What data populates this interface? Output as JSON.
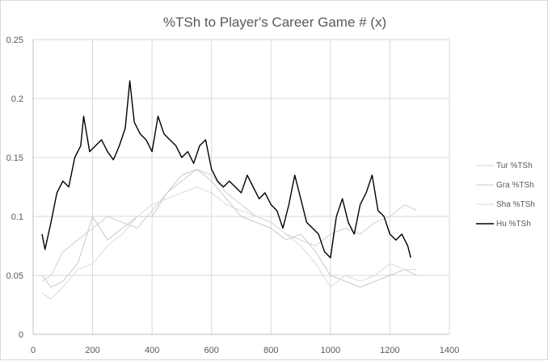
{
  "chart_data": {
    "type": "line",
    "title": "%TSh to Player's Career Game # (x)",
    "xlabel": "",
    "ylabel": "",
    "xlim": [
      0,
      1400
    ],
    "ylim": [
      0,
      0.25
    ],
    "x_ticks": [
      0,
      200,
      400,
      600,
      800,
      1000,
      1200,
      1400
    ],
    "y_ticks": [
      0,
      0.05,
      0.1,
      0.15,
      0.2,
      0.25
    ],
    "x_tick_labels": [
      "0",
      "200",
      "400",
      "600",
      "800",
      "1000",
      "1200",
      "1400"
    ],
    "y_tick_labels": [
      "0",
      "0.05",
      "0.1",
      "0.15",
      "0.2",
      "0.25"
    ],
    "grid": true,
    "legend_position": "right",
    "series": [
      {
        "name": "Tur %TSh",
        "color": "#d0d0d0",
        "x": [
          30,
          60,
          100,
          150,
          200,
          250,
          300,
          350,
          400,
          450,
          500,
          550,
          600,
          650,
          700,
          750,
          800,
          850,
          900,
          950,
          1000,
          1050,
          1100,
          1150,
          1200,
          1250,
          1290
        ],
        "y": [
          0.045,
          0.05,
          0.07,
          0.08,
          0.09,
          0.1,
          0.095,
          0.09,
          0.105,
          0.12,
          0.13,
          0.14,
          0.135,
          0.12,
          0.11,
          0.1,
          0.095,
          0.085,
          0.08,
          0.075,
          0.085,
          0.09,
          0.085,
          0.095,
          0.1,
          0.11,
          0.105
        ]
      },
      {
        "name": "Gra %TSh",
        "color": "#c8c8c8",
        "x": [
          30,
          60,
          100,
          150,
          200,
          250,
          300,
          350,
          400,
          450,
          500,
          550,
          600,
          650,
          700,
          750,
          800,
          850,
          900,
          950,
          1000,
          1050,
          1100,
          1150,
          1200,
          1250,
          1290
        ],
        "y": [
          0.05,
          0.04,
          0.045,
          0.06,
          0.1,
          0.08,
          0.09,
          0.1,
          0.1,
          0.12,
          0.135,
          0.14,
          0.13,
          0.115,
          0.1,
          0.095,
          0.09,
          0.08,
          0.085,
          0.07,
          0.05,
          0.045,
          0.04,
          0.045,
          0.05,
          0.055,
          0.05
        ]
      },
      {
        "name": "Sha %TSh",
        "color": "#dadada",
        "x": [
          30,
          60,
          100,
          150,
          200,
          250,
          300,
          350,
          400,
          450,
          500,
          550,
          600,
          650,
          700,
          750,
          800,
          850,
          900,
          950,
          1000,
          1050,
          1100,
          1150,
          1200,
          1250,
          1290
        ],
        "y": [
          0.035,
          0.03,
          0.04,
          0.055,
          0.06,
          0.075,
          0.085,
          0.1,
          0.11,
          0.115,
          0.12,
          0.125,
          0.12,
          0.11,
          0.105,
          0.1,
          0.095,
          0.085,
          0.075,
          0.06,
          0.04,
          0.05,
          0.045,
          0.05,
          0.06,
          0.055,
          0.055
        ]
      },
      {
        "name": "Hu %TSh",
        "color": "#000000",
        "x": [
          30,
          40,
          60,
          80,
          100,
          120,
          140,
          160,
          170,
          190,
          210,
          230,
          250,
          270,
          290,
          310,
          325,
          340,
          360,
          380,
          400,
          420,
          440,
          460,
          480,
          500,
          520,
          540,
          560,
          580,
          600,
          620,
          640,
          660,
          680,
          700,
          720,
          740,
          760,
          780,
          800,
          820,
          840,
          860,
          880,
          900,
          920,
          940,
          960,
          980,
          1000,
          1020,
          1040,
          1060,
          1080,
          1100,
          1120,
          1140,
          1160,
          1180,
          1200,
          1220,
          1240,
          1260,
          1270
        ],
        "y": [
          0.085,
          0.072,
          0.095,
          0.12,
          0.13,
          0.125,
          0.15,
          0.16,
          0.185,
          0.155,
          0.16,
          0.165,
          0.155,
          0.148,
          0.16,
          0.175,
          0.215,
          0.18,
          0.17,
          0.165,
          0.155,
          0.185,
          0.17,
          0.165,
          0.16,
          0.15,
          0.155,
          0.145,
          0.16,
          0.165,
          0.14,
          0.13,
          0.125,
          0.13,
          0.125,
          0.12,
          0.135,
          0.125,
          0.115,
          0.12,
          0.11,
          0.105,
          0.09,
          0.11,
          0.135,
          0.115,
          0.095,
          0.09,
          0.085,
          0.07,
          0.065,
          0.1,
          0.115,
          0.095,
          0.085,
          0.11,
          0.12,
          0.135,
          0.105,
          0.1,
          0.085,
          0.08,
          0.085,
          0.075,
          0.065
        ]
      }
    ]
  }
}
